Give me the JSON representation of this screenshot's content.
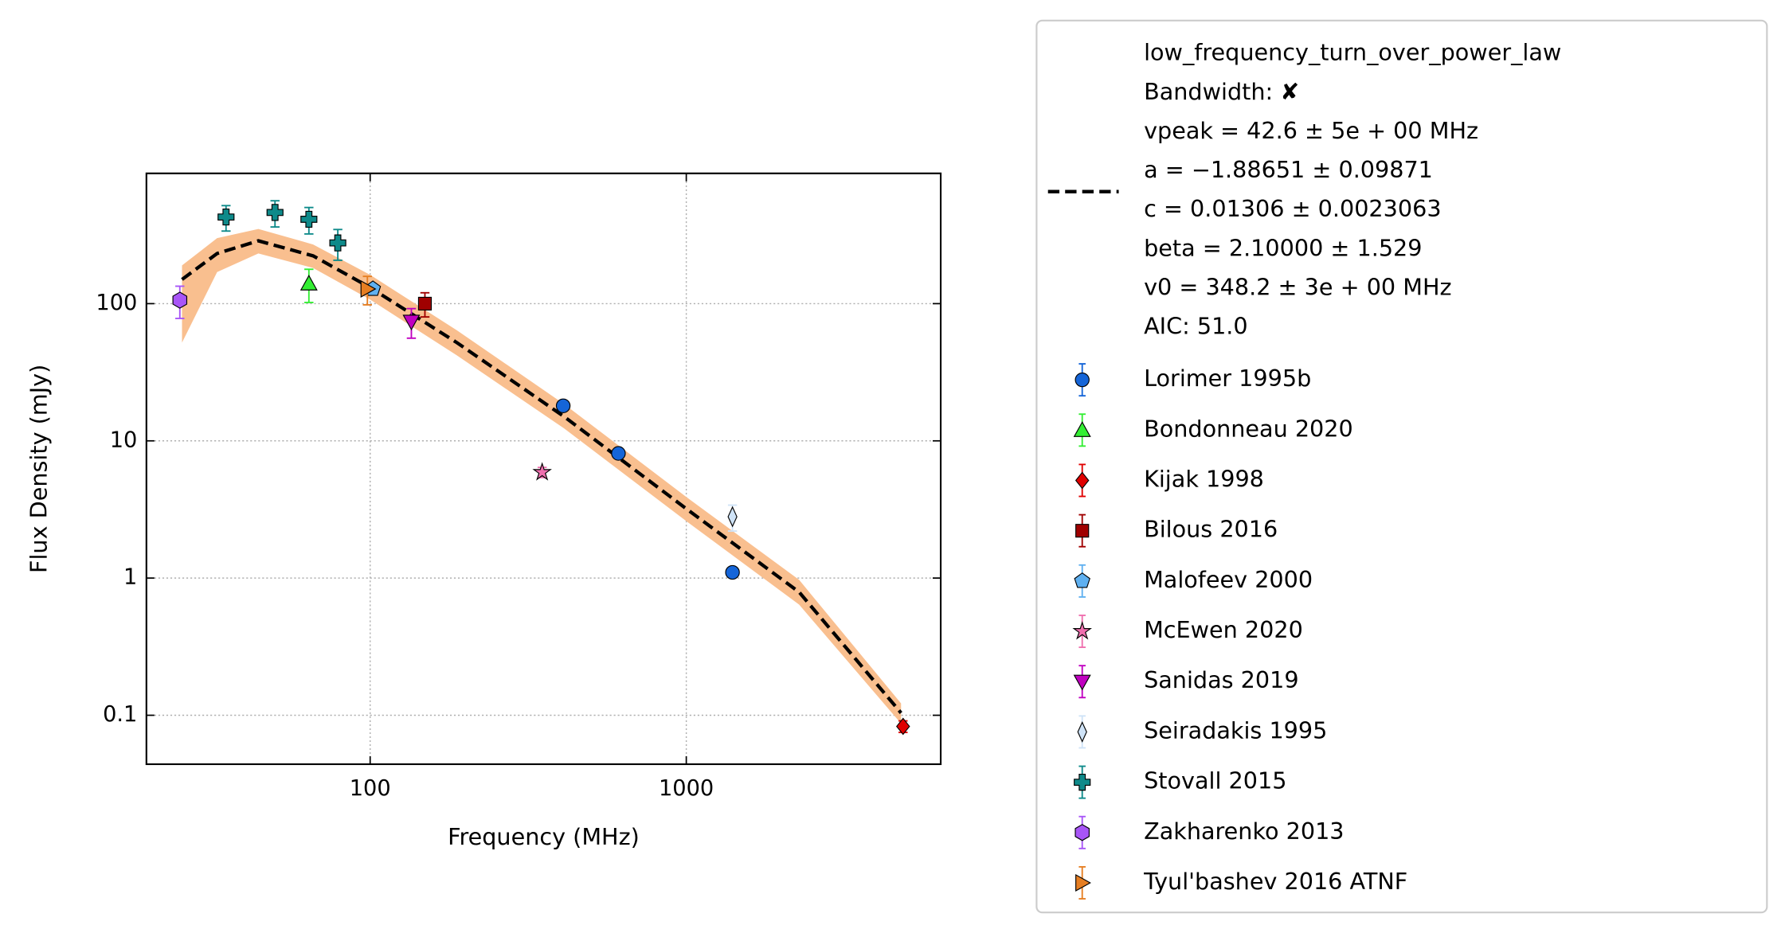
{
  "chart_data": {
    "type": "scatter",
    "x_label": "Frequency (MHz)",
    "y_label": "Flux Density (mJy)",
    "log_x": true,
    "log_y": true,
    "grid": true,
    "xlim": [
      19.6,
      6380
    ],
    "ylim": [
      0.044,
      890
    ],
    "xticks": [
      100,
      1000
    ],
    "yticks": [
      0.1,
      1,
      10,
      100
    ],
    "fit": {
      "name": "low_frequency_turn_over_power_law",
      "legend_lines": [
        "Bandwidth: ✘",
        "vpeak = 42.6 ± 5e + 00 MHz",
        "a = −1.88651 ± 0.09871",
        "c = 0.01306 ± 0.0023063",
        "beta = 2.10000 ± 1.529",
        "v0 = 348.2 ± 3e + 00 MHz",
        "AIC: 51.0"
      ],
      "color": "#000000",
      "band_color": "#f9bf8f",
      "x": [
        25.4,
        32.8,
        44.3,
        66,
        100,
        188,
        411,
        1000,
        2275,
        4780
      ],
      "values": [
        150,
        232,
        287,
        223,
        131,
        52,
        15,
        3.2,
        0.79,
        0.104
      ],
      "band_upper": [
        190,
        300,
        350,
        270,
        162,
        64,
        18.5,
        3.9,
        0.97,
        0.122
      ],
      "band_lower": [
        52,
        170,
        232,
        182,
        107,
        42,
        12.3,
        2.6,
        0.64,
        0.087
      ]
    },
    "series": [
      {
        "name": "Lorimer 1995b",
        "color": "#1565d8",
        "marker": "circle",
        "x": [
          408,
          610,
          1400
        ],
        "values": [
          18,
          8.1,
          1.1
        ],
        "errors": [
          0.9,
          0.4,
          0.06
        ]
      },
      {
        "name": "Bondonneau 2020",
        "color": "#33ee33",
        "marker": "triangle-up",
        "x": [
          64
        ],
        "values": [
          140
        ],
        "errors": [
          38
        ]
      },
      {
        "name": "Kijak 1998",
        "color": "#e00000",
        "marker": "diamond",
        "x": [
          4850
        ],
        "values": [
          0.083
        ],
        "errors": [
          0.008
        ]
      },
      {
        "name": "Bilous 2016",
        "color": "#a00000",
        "marker": "square",
        "x": [
          149
        ],
        "values": [
          100
        ],
        "errors": [
          20
        ]
      },
      {
        "name": "Malofeev 2000",
        "color": "#5fb0f0",
        "marker": "pentagon",
        "x": [
          102
        ],
        "values": [
          128
        ],
        "errors": [
          10
        ]
      },
      {
        "name": "McEwen 2020",
        "color": "#ef6fae",
        "marker": "star",
        "x": [
          350
        ],
        "values": [
          5.9
        ],
        "errors": [
          0.5
        ]
      },
      {
        "name": "Sanidas 2019",
        "color": "#c000c0",
        "marker": "triangle-down",
        "x": [
          135
        ],
        "values": [
          74
        ],
        "errors": [
          18
        ]
      },
      {
        "name": "Seiradakis 1995",
        "color": "#cfe3f7",
        "marker": "thin-diamond",
        "x": [
          1400
        ],
        "values": [
          2.8
        ],
        "errors": [
          0.6
        ]
      },
      {
        "name": "Stovall 2015",
        "color": "#0e8a8a",
        "marker": "plus",
        "x": [
          35,
          50,
          64,
          79
        ],
        "values": [
          428,
          462,
          412,
          277
        ],
        "errors": [
          90,
          100,
          90,
          70
        ]
      },
      {
        "name": "Zakharenko 2013",
        "color": "#a855f7",
        "marker": "hexagon",
        "x": [
          25
        ],
        "values": [
          106
        ],
        "errors": [
          28
        ]
      },
      {
        "name": "Tyul'bashev 2016 ATNF",
        "color": "#e67e22",
        "marker": "triangle-right",
        "x": [
          98
        ],
        "values": [
          128
        ],
        "errors": [
          30
        ]
      }
    ]
  }
}
